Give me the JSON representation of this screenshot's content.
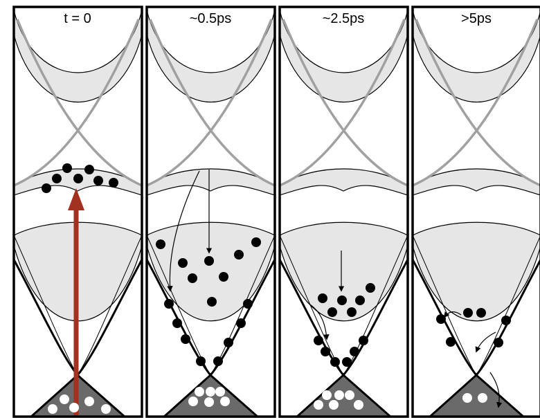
{
  "panels": [
    {
      "title": "t = 0"
    },
    {
      "title": "~0.5ps"
    },
    {
      "title": "~2.5ps"
    },
    {
      "title": ">5ps"
    }
  ]
}
